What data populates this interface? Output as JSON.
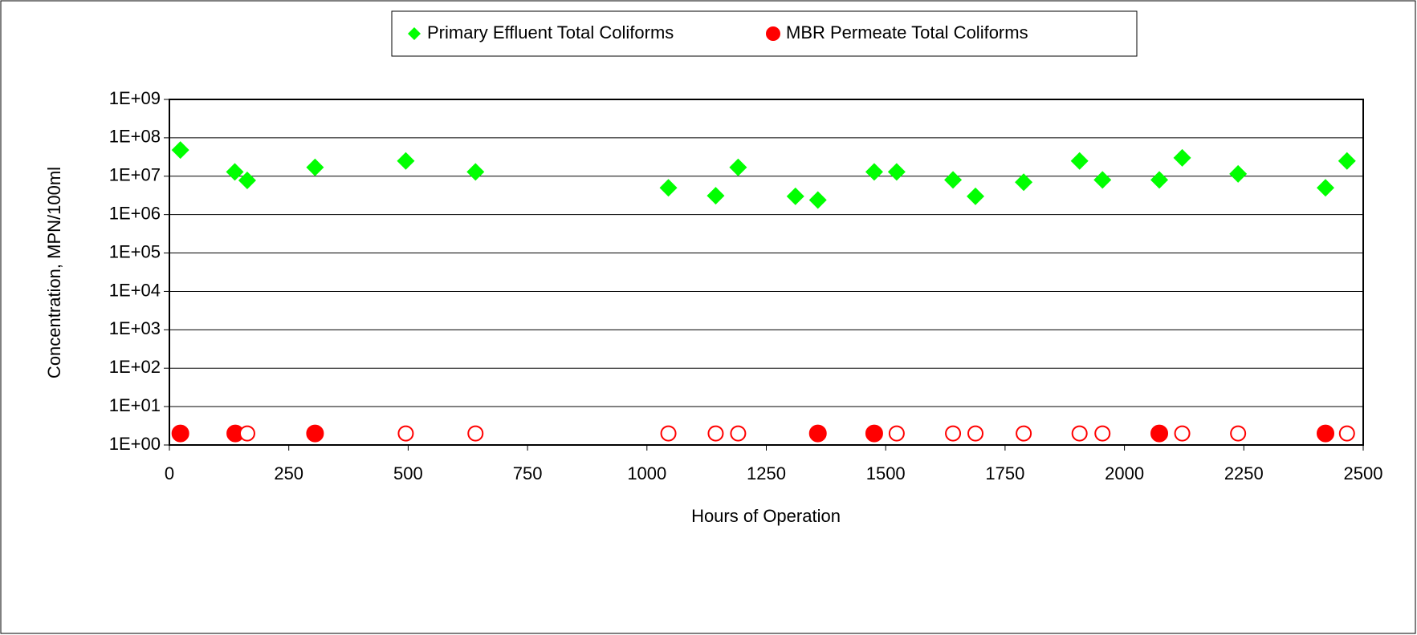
{
  "chart_data": {
    "type": "scatter",
    "xlabel": "Hours of Operation",
    "ylabel": "Concentration, MPN/100ml",
    "xlim": [
      0,
      2500
    ],
    "xticks": [
      0,
      250,
      500,
      750,
      1000,
      1250,
      1500,
      1750,
      2000,
      2250,
      2500
    ],
    "ylim": [
      1,
      1000000000
    ],
    "yscale": "log",
    "yticks": [
      {
        "value": 1,
        "label": "1E+00"
      },
      {
        "value": 10,
        "label": "1E+01"
      },
      {
        "value": 100,
        "label": "1E+02"
      },
      {
        "value": 1000,
        "label": "1E+03"
      },
      {
        "value": 10000,
        "label": "1E+04"
      },
      {
        "value": 100000,
        "label": "1E+05"
      },
      {
        "value": 1000000,
        "label": "1E+06"
      },
      {
        "value": 10000000,
        "label": "1E+07"
      },
      {
        "value": 100000000,
        "label": "1E+08"
      },
      {
        "value": 1000000000,
        "label": "1E+09"
      }
    ],
    "grid": true,
    "legend": "top",
    "series": [
      {
        "name": "Primary Effluent Total Coliforms",
        "color": "#00ff00",
        "marker": "diamond",
        "x": [
          23,
          137,
          163,
          305,
          495,
          641,
          1045,
          1144,
          1191,
          1311,
          1358,
          1476,
          1523,
          1641,
          1688,
          1789,
          1906,
          1954,
          2073,
          2121,
          2238,
          2421,
          2466
        ],
        "values": [
          48000000,
          13000000,
          7800000,
          17000000,
          25000000,
          13000000,
          5000000,
          3100000,
          17000000,
          3000000,
          2400000,
          13000000,
          13000000,
          8000000,
          3000000,
          7000000,
          25000000,
          8000000,
          8000000,
          30000000,
          11500000,
          5000000,
          25000000
        ]
      },
      {
        "name": "MBR Permeate Total Coliforms",
        "color": "#ff0000",
        "marker": "circle",
        "x": [
          23,
          138,
          163,
          305,
          495,
          641,
          1045,
          1144,
          1191,
          1358,
          1476,
          1523,
          1641,
          1688,
          1789,
          1906,
          1954,
          2073,
          2121,
          2238,
          2421,
          2466
        ],
        "values": [
          2,
          2,
          2,
          2,
          2,
          2,
          2,
          2,
          2,
          2,
          2,
          2,
          2,
          2,
          2,
          2,
          2,
          2,
          2,
          2,
          2,
          2
        ],
        "open": [
          false,
          false,
          true,
          false,
          true,
          true,
          true,
          true,
          true,
          false,
          false,
          true,
          true,
          true,
          true,
          true,
          true,
          false,
          true,
          true,
          false,
          true
        ]
      }
    ]
  }
}
